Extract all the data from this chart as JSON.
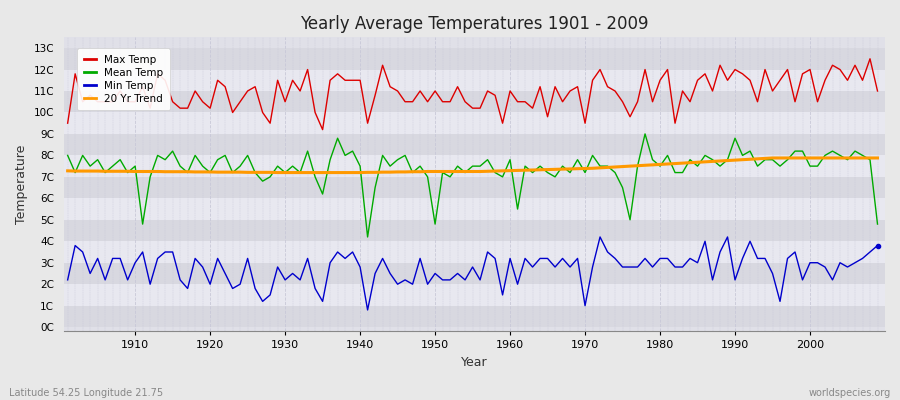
{
  "title": "Yearly Average Temperatures 1901 - 2009",
  "xlabel": "Year",
  "ylabel": "Temperature",
  "bottom_left": "Latitude 54.25 Longitude 21.75",
  "bottom_right": "worldspecies.org",
  "yticks": [
    "0C",
    "1C",
    "2C",
    "3C",
    "4C",
    "5C",
    "6C",
    "7C",
    "8C",
    "9C",
    "10C",
    "11C",
    "12C",
    "13C"
  ],
  "yvalues": [
    0,
    1,
    2,
    3,
    4,
    5,
    6,
    7,
    8,
    9,
    10,
    11,
    12,
    13
  ],
  "ylim": [
    -0.2,
    13.5
  ],
  "xlim": [
    1900.5,
    2010
  ],
  "fig_bg": "#e8e8e8",
  "plot_bg": "#e0e0e8",
  "band_colors": [
    "#d8d8e0",
    "#e8e8f0"
  ],
  "grid_color": "#c8c8d8",
  "legend_labels": [
    "Max Temp",
    "Mean Temp",
    "Min Temp",
    "20 Yr Trend"
  ],
  "legend_colors": [
    "#dd0000",
    "#00aa00",
    "#0000cc",
    "#ff9900"
  ],
  "start_year": 1901,
  "max_temp": [
    9.5,
    11.8,
    10.5,
    10.8,
    10.5,
    10.5,
    10.5,
    11.0,
    10.5,
    10.5,
    11.2,
    10.2,
    11.8,
    11.5,
    10.5,
    10.2,
    10.2,
    11.0,
    10.5,
    10.2,
    11.5,
    11.2,
    10.0,
    10.5,
    11.0,
    11.2,
    10.0,
    9.5,
    11.5,
    10.5,
    11.5,
    11.0,
    12.0,
    10.0,
    9.2,
    11.5,
    11.8,
    11.5,
    11.5,
    11.5,
    9.5,
    10.8,
    12.2,
    11.2,
    11.0,
    10.5,
    10.5,
    11.0,
    10.5,
    11.0,
    10.5,
    10.5,
    11.2,
    10.5,
    10.2,
    10.2,
    11.0,
    10.8,
    9.5,
    11.0,
    10.5,
    10.5,
    10.2,
    11.2,
    9.8,
    11.2,
    10.5,
    11.0,
    11.2,
    9.5,
    11.5,
    12.0,
    11.2,
    11.0,
    10.5,
    9.8,
    10.5,
    12.0,
    10.5,
    11.5,
    12.0,
    9.5,
    11.0,
    10.5,
    11.5,
    11.8,
    11.0,
    12.2,
    11.5,
    12.0,
    11.8,
    11.5,
    10.5,
    12.0,
    11.0,
    11.5,
    12.0,
    10.5,
    11.8,
    12.0,
    10.5,
    11.5,
    12.2,
    12.0,
    11.5,
    12.2,
    11.5,
    12.5,
    11.0
  ],
  "mean_temp": [
    8.0,
    7.2,
    8.0,
    7.5,
    7.8,
    7.2,
    7.5,
    7.8,
    7.2,
    7.5,
    4.8,
    7.0,
    8.0,
    7.8,
    8.2,
    7.5,
    7.2,
    8.0,
    7.5,
    7.2,
    7.8,
    8.0,
    7.2,
    7.5,
    8.0,
    7.2,
    6.8,
    7.0,
    7.5,
    7.2,
    7.5,
    7.2,
    8.2,
    7.0,
    6.2,
    7.8,
    8.8,
    8.0,
    8.2,
    7.5,
    4.2,
    6.5,
    8.0,
    7.5,
    7.8,
    8.0,
    7.2,
    7.5,
    7.0,
    4.8,
    7.2,
    7.0,
    7.5,
    7.2,
    7.5,
    7.5,
    7.8,
    7.2,
    7.0,
    7.8,
    5.5,
    7.5,
    7.2,
    7.5,
    7.2,
    7.0,
    7.5,
    7.2,
    7.8,
    7.2,
    8.0,
    7.5,
    7.5,
    7.2,
    6.5,
    5.0,
    7.5,
    9.0,
    7.8,
    7.5,
    8.0,
    7.2,
    7.2,
    7.8,
    7.5,
    8.0,
    7.8,
    7.5,
    7.8,
    8.8,
    8.0,
    8.2,
    7.5,
    7.8,
    7.8,
    7.5,
    7.8,
    8.2,
    8.2,
    7.5,
    7.5,
    8.0,
    8.2,
    8.0,
    7.8,
    8.2,
    8.0,
    7.8,
    4.8
  ],
  "min_temp": [
    2.2,
    3.8,
    3.5,
    2.5,
    3.2,
    2.2,
    3.2,
    3.2,
    2.2,
    3.0,
    3.5,
    2.0,
    3.2,
    3.5,
    3.5,
    2.2,
    1.8,
    3.2,
    2.8,
    2.0,
    3.2,
    2.5,
    1.8,
    2.0,
    3.2,
    1.8,
    1.2,
    1.5,
    2.8,
    2.2,
    2.5,
    2.2,
    3.2,
    1.8,
    1.2,
    3.0,
    3.5,
    3.2,
    3.5,
    2.8,
    0.8,
    2.5,
    3.2,
    2.5,
    2.0,
    2.2,
    2.0,
    3.2,
    2.0,
    2.5,
    2.2,
    2.2,
    2.5,
    2.2,
    2.8,
    2.2,
    3.5,
    3.2,
    1.5,
    3.2,
    2.0,
    3.2,
    2.8,
    3.2,
    3.2,
    2.8,
    3.2,
    2.8,
    3.2,
    1.0,
    2.8,
    4.2,
    3.5,
    3.2,
    2.8,
    2.8,
    2.8,
    3.2,
    2.8,
    3.2,
    3.2,
    2.8,
    2.8,
    3.2,
    3.0,
    4.0,
    2.2,
    3.5,
    4.2,
    2.2,
    3.2,
    4.0,
    3.2,
    3.2,
    2.5,
    1.2,
    3.2,
    3.5,
    2.2,
    3.0,
    3.0,
    2.8,
    2.2,
    3.0,
    2.8,
    3.0,
    3.2,
    3.5,
    3.8
  ],
  "trend_values": [
    7.28,
    7.27,
    7.27,
    7.27,
    7.27,
    7.26,
    7.26,
    7.26,
    7.26,
    7.25,
    7.25,
    7.25,
    7.25,
    7.24,
    7.24,
    7.24,
    7.24,
    7.23,
    7.23,
    7.23,
    7.22,
    7.22,
    7.22,
    7.22,
    7.21,
    7.21,
    7.21,
    7.21,
    7.2,
    7.2,
    7.2,
    7.2,
    7.2,
    7.2,
    7.2,
    7.2,
    7.2,
    7.2,
    7.2,
    7.2,
    7.21,
    7.21,
    7.22,
    7.22,
    7.23,
    7.23,
    7.24,
    7.24,
    7.25,
    7.25,
    7.25,
    7.25,
    7.25,
    7.25,
    7.25,
    7.25,
    7.26,
    7.27,
    7.28,
    7.29,
    7.3,
    7.31,
    7.32,
    7.33,
    7.34,
    7.35,
    7.36,
    7.37,
    7.38,
    7.39,
    7.4,
    7.42,
    7.44,
    7.46,
    7.48,
    7.5,
    7.52,
    7.54,
    7.56,
    7.58,
    7.6,
    7.62,
    7.64,
    7.66,
    7.68,
    7.7,
    7.72,
    7.74,
    7.76,
    7.78,
    7.8,
    7.82,
    7.84,
    7.86,
    7.88,
    7.88,
    7.88,
    7.88,
    7.88,
    7.88,
    7.88,
    7.88,
    7.88,
    7.88,
    7.88,
    7.88,
    7.88,
    7.88,
    7.88
  ]
}
